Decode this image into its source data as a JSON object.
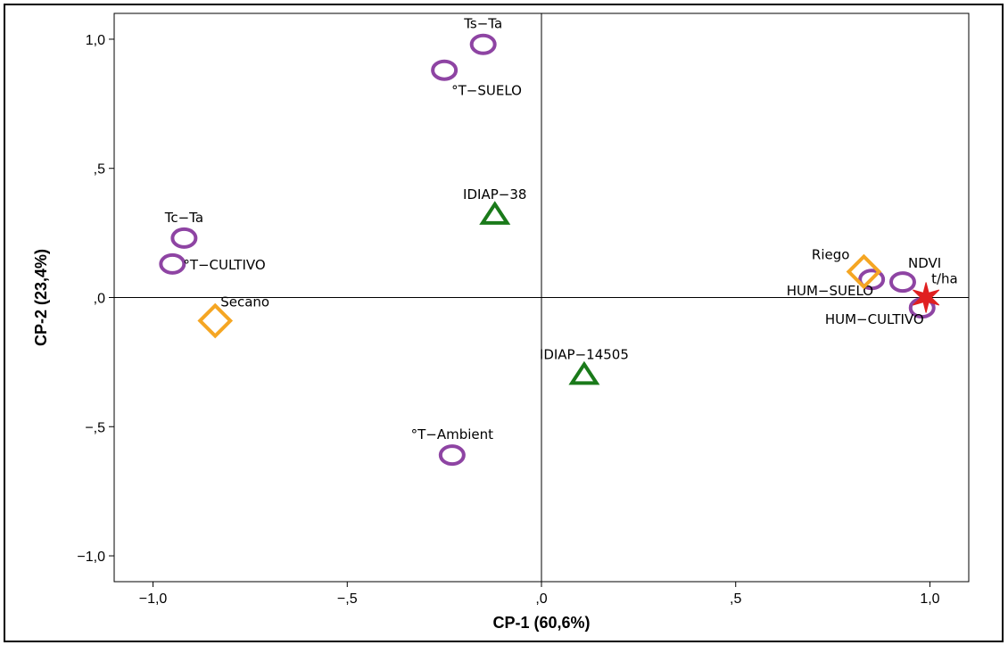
{
  "chart_data": {
    "type": "scatter",
    "xlabel": "CP-1 (60,6%)",
    "ylabel": "CP-2 (23,4%)",
    "xlim": [
      -1.1,
      1.1
    ],
    "ylim": [
      -1.1,
      1.1
    ],
    "xticks": [
      {
        "v": -1.0,
        "label": "−1,0"
      },
      {
        "v": -0.5,
        "label": "−,5"
      },
      {
        "v": 0.0,
        "label": ",0"
      },
      {
        "v": 0.5,
        "label": ",5"
      },
      {
        "v": 1.0,
        "label": "1,0"
      }
    ],
    "yticks": [
      {
        "v": 1.0,
        "label": "1,0"
      },
      {
        "v": 0.5,
        "label": ",5"
      },
      {
        "v": 0.0,
        "label": ",0"
      },
      {
        "v": -0.5,
        "label": "−,5"
      },
      {
        "v": -1.0,
        "label": "−1,0"
      }
    ],
    "reference_lines": {
      "x": 0,
      "y": 0
    },
    "grid": false,
    "colors": {
      "variable": "#8e44a3",
      "condition": "#f5a623",
      "genotype": "#1a7a1a",
      "target": "#e02020"
    },
    "groups": [
      {
        "marker": "circle",
        "color": "#8e44a3",
        "points": [
          {
            "label": "Ts−Ta",
            "x": -0.15,
            "y": 0.98,
            "label_pos": "above"
          },
          {
            "label": "°T−SUELO",
            "x": -0.25,
            "y": 0.88,
            "label_pos": "below-right"
          },
          {
            "label": "Tc−Ta",
            "x": -0.92,
            "y": 0.23,
            "label_pos": "above"
          },
          {
            "label": "°T−CULTIVO",
            "x": -0.95,
            "y": 0.13,
            "label_pos": "right"
          },
          {
            "label": "°T−Ambient",
            "x": -0.23,
            "y": -0.61,
            "label_pos": "above"
          },
          {
            "label": "HUM−SUELO",
            "x": 0.85,
            "y": 0.07,
            "label_pos": "below-left"
          },
          {
            "label": "NDVI",
            "x": 0.93,
            "y": 0.06,
            "label_pos": "above-right"
          },
          {
            "label": "HUM−CULTIVO",
            "x": 0.98,
            "y": -0.04,
            "label_pos": "below-left"
          }
        ]
      },
      {
        "marker": "diamond",
        "color": "#f5a623",
        "points": [
          {
            "label": "Riego",
            "x": 0.83,
            "y": 0.1,
            "label_pos": "above-left"
          },
          {
            "label": "Secano",
            "x": -0.84,
            "y": -0.09,
            "label_pos": "above-right"
          }
        ]
      },
      {
        "marker": "triangle",
        "color": "#1a7a1a",
        "points": [
          {
            "label": "IDIAP−38",
            "x": -0.12,
            "y": 0.32,
            "label_pos": "above"
          },
          {
            "label": "IDIAP−14505",
            "x": 0.11,
            "y": -0.3,
            "label_pos": "above"
          }
        ]
      },
      {
        "marker": "star",
        "color": "#e02020",
        "points": [
          {
            "label": "t/ha",
            "x": 0.99,
            "y": 0.0,
            "label_pos": "above-right"
          }
        ]
      }
    ]
  }
}
